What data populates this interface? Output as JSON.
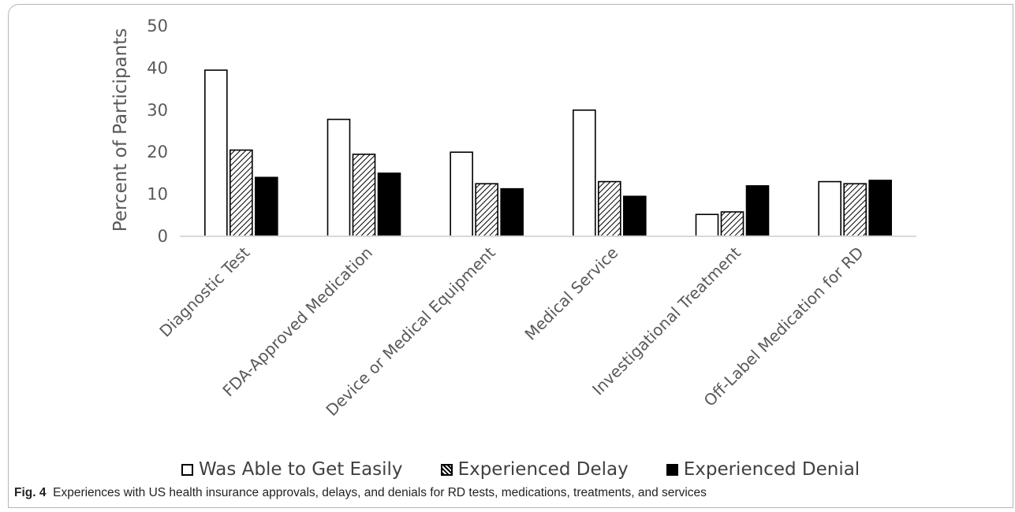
{
  "chart_data": {
    "type": "bar",
    "categories": [
      "Diagnostic Test",
      "FDA-Approved Medication",
      "Device or Medical Equipment",
      "Medical Service",
      "Investigational Treatment",
      "Off-Label Medication for RD"
    ],
    "series": [
      {
        "name": "Was Able to Get Easily",
        "values": [
          39.5,
          27.8,
          20.0,
          30.0,
          5.2,
          13.0
        ],
        "fill": "white"
      },
      {
        "name": "Experienced Delay",
        "values": [
          20.5,
          19.5,
          12.5,
          13.0,
          5.8,
          12.5
        ],
        "fill": "hatch"
      },
      {
        "name": "Experienced Denial",
        "values": [
          14.0,
          15.0,
          11.3,
          9.5,
          12.0,
          13.3
        ],
        "fill": "black"
      }
    ],
    "ylabel": "Percent of Participants",
    "ylim": [
      0,
      50
    ],
    "yticks": [
      0,
      10,
      20,
      30,
      40,
      50
    ],
    "legend_position": "bottom",
    "colors": {
      "bar_edge": "#000000",
      "baseline": "#d9d9d9",
      "tick_text": "#595959"
    }
  },
  "caption": {
    "label": "Fig. 4",
    "text": "Experiences with US health insurance approvals, delays, and denials for RD tests, medications, treatments, and services"
  }
}
